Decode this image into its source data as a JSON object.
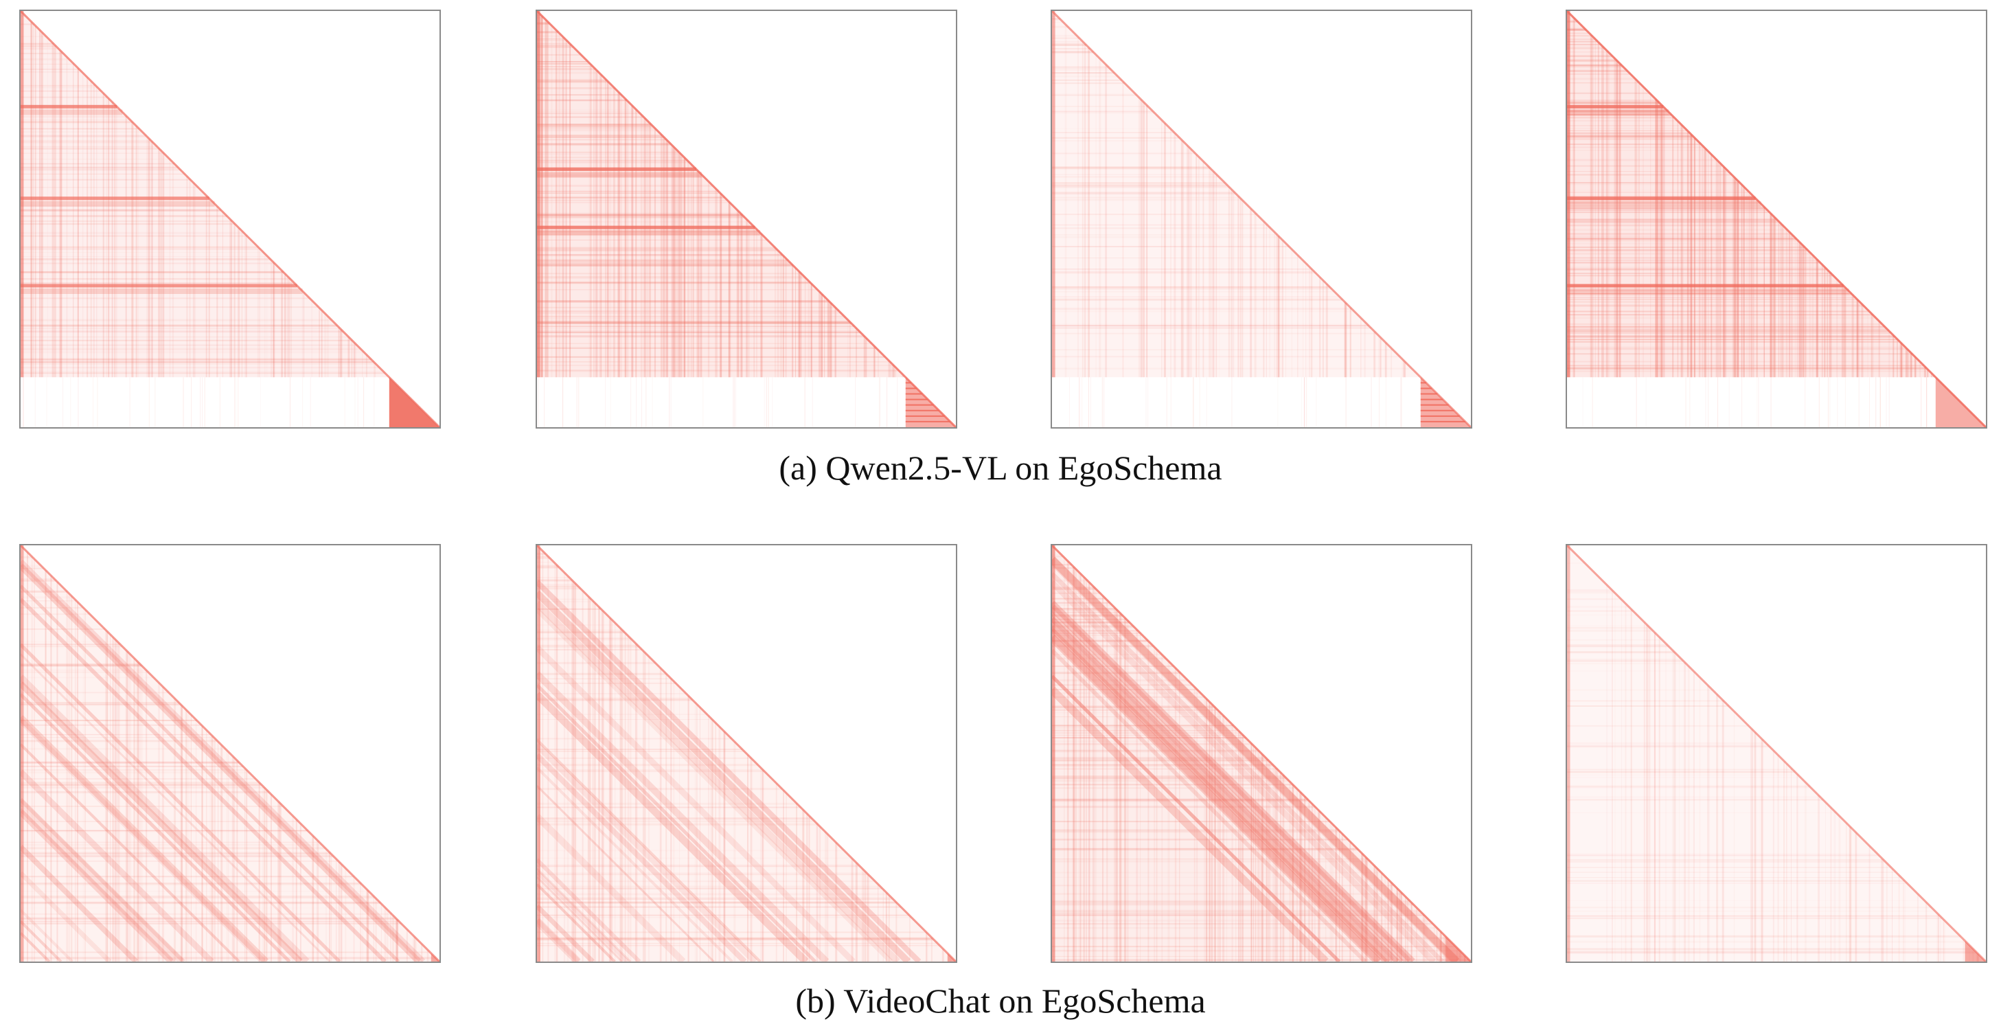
{
  "figure": {
    "captions": {
      "a": "(a) Qwen2.5-VL on EgoSchema",
      "b": "(b) VideoChat on EgoSchema"
    },
    "colors": {
      "attention": "#f06a5c",
      "frame": "#8a8a8a",
      "background": "#ffffff"
    }
  },
  "chart_data": [
    {
      "type": "heatmap",
      "panel": "a-1",
      "model": "Qwen2.5-VL",
      "dataset": "EgoSchema",
      "mask": "lower-triangular",
      "pattern": "dense columns near start, horizontal bands at 0.23, 0.45, 0.66; bottom text block 0.88-1.0; solid corner triangle",
      "density": 0.45,
      "band_rows": [
        0.23,
        0.45,
        0.66
      ],
      "text_block_start": 0.88,
      "corner_block_start": 0.88
    },
    {
      "type": "heatmap",
      "panel": "a-2",
      "model": "Qwen2.5-VL",
      "dataset": "EgoSchema",
      "mask": "lower-triangular",
      "pattern": "very dense upper region with strong bands; bottom text block; hatched corner triangle",
      "density": 0.75,
      "band_rows": [
        0.38,
        0.52
      ],
      "text_block_start": 0.88,
      "corner_block_start": 0.88
    },
    {
      "type": "heatmap",
      "panel": "a-3",
      "model": "Qwen2.5-VL",
      "dataset": "EgoSchema",
      "mask": "lower-triangular",
      "pattern": "sparse uniform; bottom text block; hatched corner triangle",
      "density": 0.28,
      "band_rows": [],
      "text_block_start": 0.88,
      "corner_block_start": 0.88
    },
    {
      "type": "heatmap",
      "panel": "a-4",
      "model": "Qwen2.5-VL",
      "dataset": "EgoSchema",
      "mask": "lower-triangular",
      "pattern": "very dense with strong bands at 0.23, 0.45, 0.66; empty bottom text block; light corner triangle",
      "density": 0.85,
      "band_rows": [
        0.23,
        0.45,
        0.66
      ],
      "text_block_start": 0.88,
      "corner_block_start": 0.88
    },
    {
      "type": "heatmap",
      "panel": "b-1",
      "model": "VideoChat",
      "dataset": "EgoSchema",
      "mask": "lower-triangular",
      "pattern": "diagonal stripes parallel to main diagonal; strong diagonal line",
      "density": 0.35,
      "band_rows": [],
      "text_block_start": 1.0,
      "corner_block_start": 0.98
    },
    {
      "type": "heatmap",
      "panel": "b-2",
      "model": "VideoChat",
      "dataset": "EgoSchema",
      "mask": "lower-triangular",
      "pattern": "diagonal stripes parallel to main diagonal; strong diagonal line",
      "density": 0.35,
      "band_rows": [],
      "text_block_start": 1.0,
      "corner_block_start": 0.98
    },
    {
      "type": "heatmap",
      "panel": "b-3",
      "model": "VideoChat",
      "dataset": "EgoSchema",
      "mask": "lower-triangular",
      "pattern": "dense near-diagonal band, moderate fill elsewhere; small corner block",
      "density": 0.6,
      "band_rows": [],
      "text_block_start": 1.0,
      "corner_block_start": 0.94
    },
    {
      "type": "heatmap",
      "panel": "b-4",
      "model": "VideoChat",
      "dataset": "EgoSchema",
      "mask": "lower-triangular",
      "pattern": "very sparse; faint vertical lines; small corner triangle",
      "density": 0.15,
      "band_rows": [],
      "text_block_start": 1.0,
      "corner_block_start": 0.95
    }
  ]
}
